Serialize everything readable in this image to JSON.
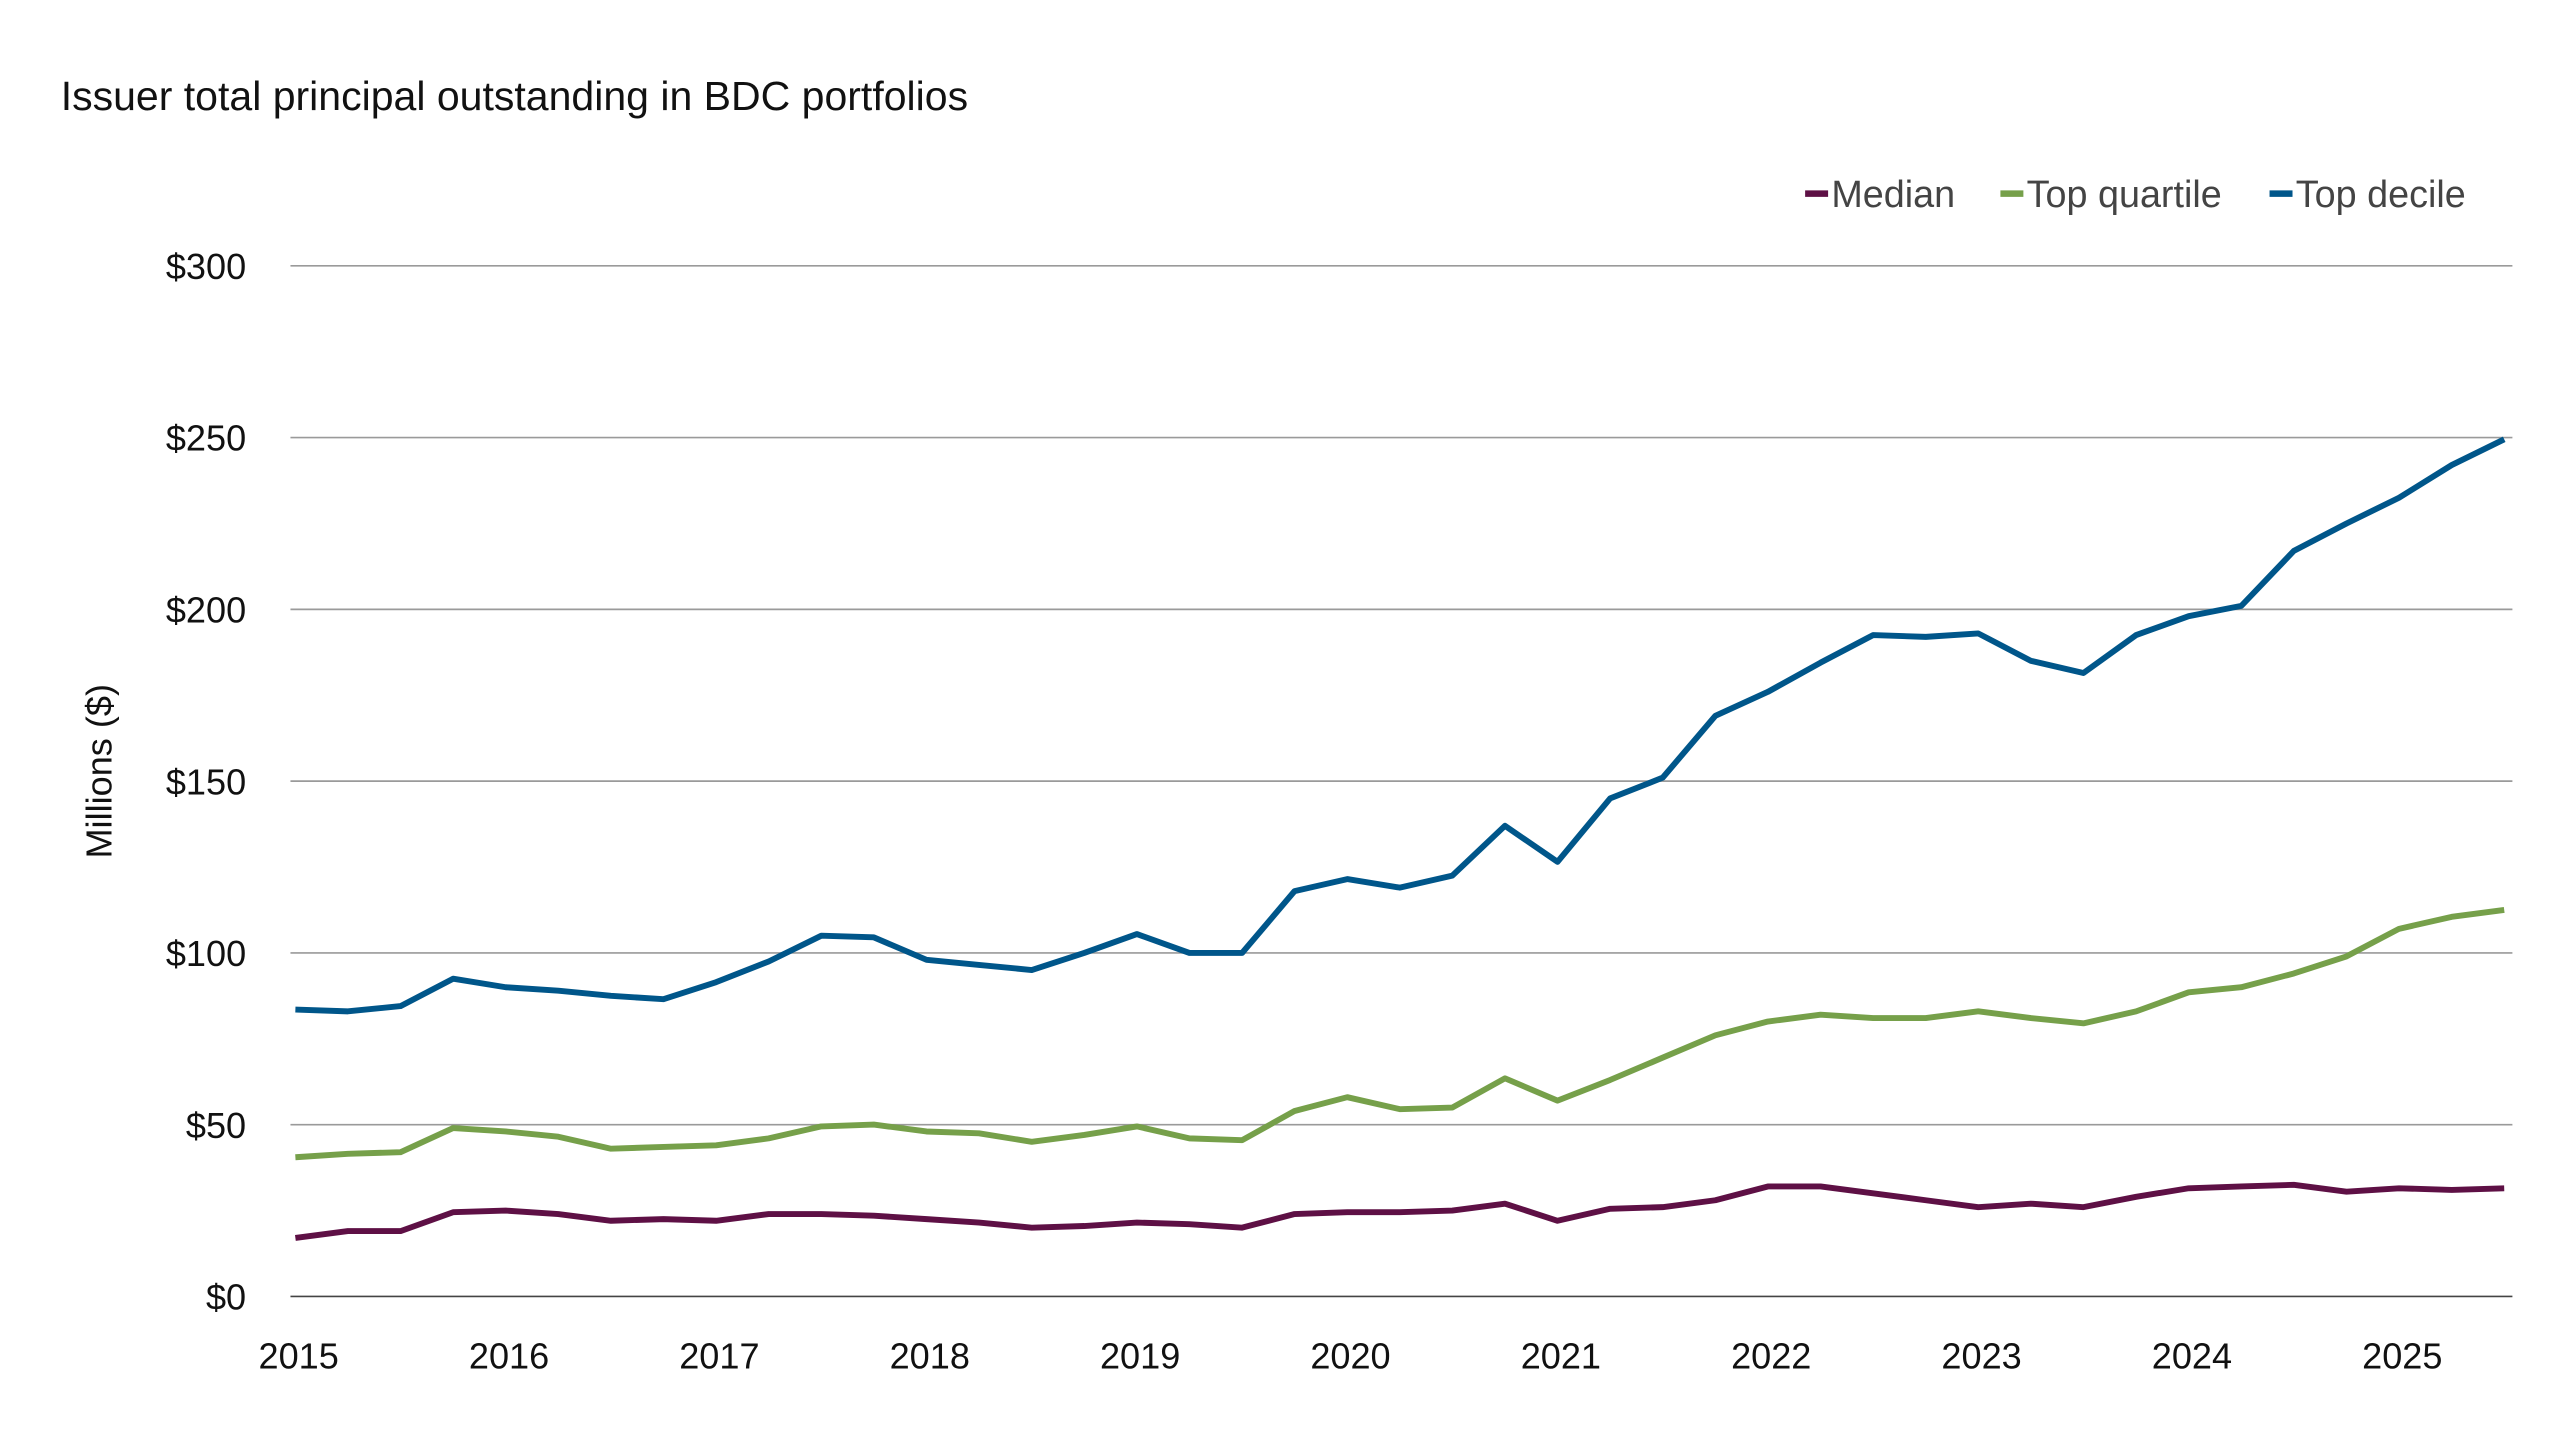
{
  "chart_data": {
    "type": "line",
    "title": "Issuer total principal outstanding in BDC portfolios",
    "xlabel": "",
    "ylabel": "Millions ($)",
    "ylim": [
      0,
      300
    ],
    "xlim": [
      2015,
      2025.5
    ],
    "grid": "horizontal",
    "legend_position": "top-right",
    "y_ticks": [
      0,
      50,
      100,
      150,
      200,
      250,
      300
    ],
    "y_tick_labels": [
      "$0",
      "$50",
      "$100",
      "$150",
      "$200",
      "$250",
      "$300"
    ],
    "x_tick_labels": [
      "2015",
      "2016",
      "2017",
      "2018",
      "2019",
      "2020",
      "2021",
      "2022",
      "2023",
      "2024",
      "2025"
    ],
    "x": [
      2015,
      2015.25,
      2015.5,
      2015.75,
      2016,
      2016.25,
      2016.5,
      2016.75,
      2017,
      2017.25,
      2017.5,
      2017.75,
      2018,
      2018.25,
      2018.5,
      2018.75,
      2019,
      2019.25,
      2019.5,
      2019.75,
      2020,
      2020.25,
      2020.5,
      2020.75,
      2021,
      2021.25,
      2021.5,
      2021.75,
      2022,
      2022.25,
      2022.5,
      2022.75,
      2023,
      2023.25,
      2023.5,
      2023.75,
      2024,
      2024.25,
      2024.5,
      2024.75,
      2025,
      2025.25,
      2025.5
    ],
    "series": [
      {
        "name": "Median",
        "color": "#5e1045",
        "values": [
          17,
          19,
          19,
          24.5,
          25,
          24,
          22,
          22.5,
          22,
          24,
          24,
          23.5,
          22.5,
          21.5,
          20,
          20.5,
          21.5,
          21,
          20,
          24,
          24.5,
          24.5,
          25,
          27,
          22,
          25.5,
          26,
          28,
          32,
          32,
          30,
          28,
          26,
          27,
          26,
          29,
          31.5,
          32,
          32.5,
          30.5,
          31.5,
          31,
          31.5
        ]
      },
      {
        "name": "Top quartile",
        "color": "#76a04a",
        "values": [
          40.5,
          41.5,
          42,
          49,
          48,
          46.5,
          43,
          43.5,
          44,
          46,
          49.5,
          50,
          48,
          47.5,
          45,
          47,
          49.5,
          46,
          45.5,
          54,
          58,
          54.5,
          55,
          63.5,
          57,
          63,
          69.5,
          76,
          80,
          82,
          81,
          81,
          83,
          81,
          79.5,
          83,
          88.5,
          90,
          94,
          99,
          107,
          110.5,
          112.5
        ]
      },
      {
        "name": "Top decile",
        "color": "#00568a",
        "values": [
          83.5,
          83,
          84.5,
          92.5,
          90,
          89,
          87.5,
          86.5,
          91.5,
          97.5,
          105,
          104.5,
          98,
          96.5,
          95,
          100,
          105.5,
          100,
          100,
          118,
          121.5,
          119,
          122.5,
          137,
          126.5,
          145,
          151,
          169,
          176,
          184.5,
          192.5,
          192,
          193,
          185,
          181.5,
          192.5,
          198,
          201,
          217,
          225,
          232.5,
          242,
          249.5
        ]
      }
    ]
  }
}
